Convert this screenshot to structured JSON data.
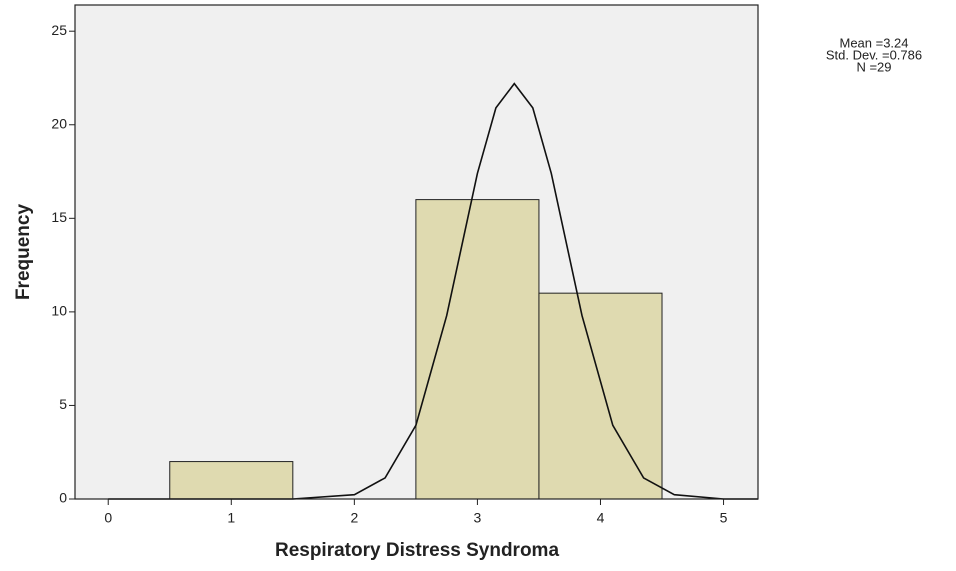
{
  "chart_data": {
    "type": "histogram",
    "bins": [
      0.5,
      1.5,
      2.5,
      3.5,
      4.5
    ],
    "counts": [
      2,
      0,
      16,
      11
    ],
    "color": "#ddd7a9",
    "plot_background": "#f0f0f0",
    "curve": {
      "x": [
        0,
        1,
        1.5,
        2,
        2.25,
        2.5,
        2.75,
        3,
        3.15,
        3.3,
        3.45,
        3.6,
        3.85,
        4.1,
        4.35,
        4.6,
        5,
        5.28
      ],
      "y": [
        0,
        0,
        0,
        0.23,
        1.13,
        3.94,
        9.8,
        17.4,
        20.9,
        22.2,
        20.9,
        17.4,
        9.8,
        3.94,
        1.13,
        0.23,
        0,
        0
      ],
      "color": "#111111"
    },
    "xlabel": "Respiratory Distress Syndroma",
    "ylabel": "Frequency",
    "xlim": [
      -0.27,
      5.28
    ],
    "ylim": [
      0,
      26.4
    ],
    "xticks": [
      0,
      1,
      2,
      3,
      4,
      5
    ],
    "yticks": [
      0,
      5,
      10,
      15,
      20,
      25
    ],
    "annotations": [
      "Mean =3.24",
      "Std. Dev. =0.786",
      "N =29"
    ]
  }
}
